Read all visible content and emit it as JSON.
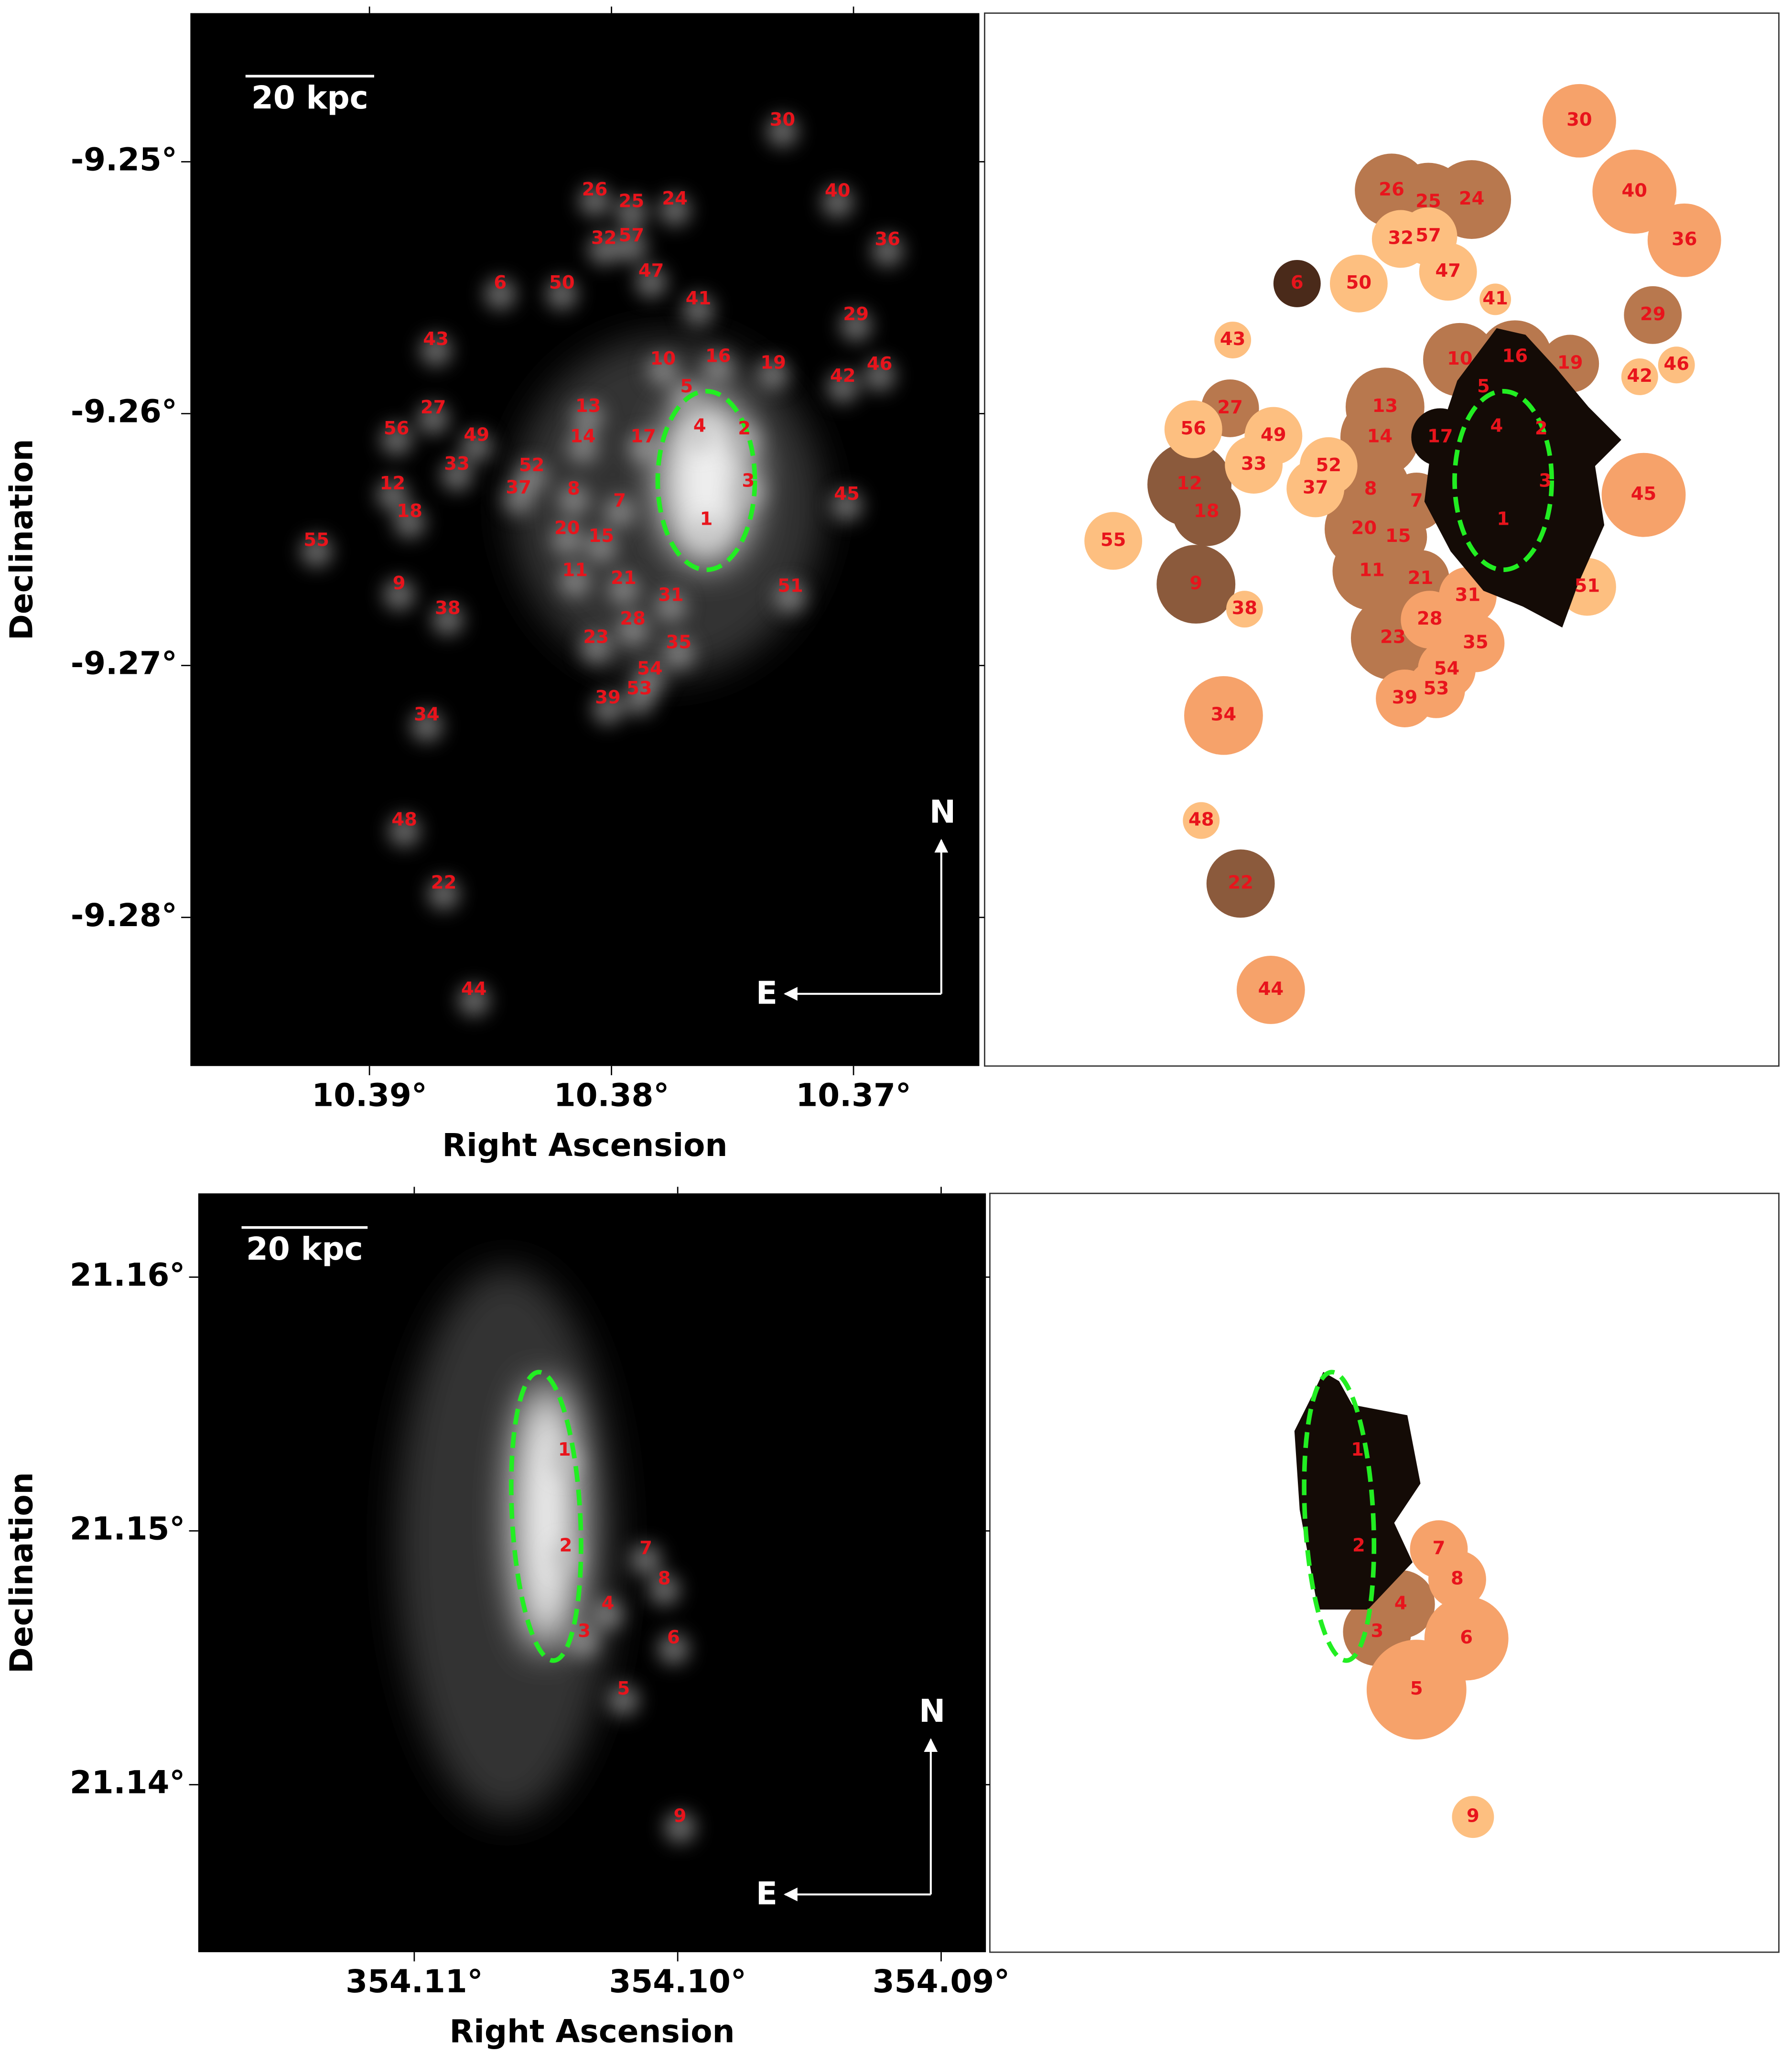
{
  "chart_data": [
    {
      "type": "image",
      "xlabel": "Right Ascension",
      "ylabel": "Declination",
      "xlim": [
        10.3974,
        10.3648
      ],
      "ylim": [
        -9.2859,
        -9.2441
      ],
      "xticks": [
        {
          "value": 10.39,
          "label": "10.39°"
        },
        {
          "value": 10.38,
          "label": "10.38°"
        },
        {
          "value": 10.37,
          "label": "10.37°"
        }
      ],
      "yticks": [
        {
          "value": -9.25,
          "label": "-9.25°"
        },
        {
          "value": -9.26,
          "label": "-9.26°"
        },
        {
          "value": -9.27,
          "label": "-9.27°"
        },
        {
          "value": -9.28,
          "label": "-9.28°"
        }
      ],
      "scale_bar": "20 kpc",
      "compass": [
        "N",
        "E"
      ],
      "regions": [
        "1",
        "2",
        "3",
        "4",
        "5",
        "6",
        "7",
        "8",
        "9",
        "10",
        "11",
        "12",
        "13",
        "14",
        "15",
        "16",
        "17",
        "18",
        "19",
        "20",
        "21",
        "22",
        "23",
        "24",
        "25",
        "26",
        "27",
        "28",
        "29",
        "30",
        "31",
        "32",
        "33",
        "34",
        "35",
        "36",
        "37",
        "38",
        "39",
        "40",
        "41",
        "42",
        "43",
        "44",
        "45",
        "46",
        "47",
        "48",
        "49",
        "50",
        "51",
        "52",
        "53",
        "54",
        "55",
        "56",
        "57"
      ]
    },
    {
      "type": "image",
      "xlabel": "Right Ascension",
      "ylabel": "Declination",
      "xlim": [
        354.1182,
        354.0883
      ],
      "ylim": [
        21.1334,
        21.1633
      ],
      "xticks": [
        {
          "value": 354.11,
          "label": "354.11°"
        },
        {
          "value": 354.1,
          "label": "354.10°"
        },
        {
          "value": 354.09,
          "label": "354.09°"
        }
      ],
      "yticks": [
        {
          "value": 21.16,
          "label": "21.16°"
        },
        {
          "value": 21.15,
          "label": "21.15°"
        },
        {
          "value": 21.14,
          "label": "21.14°"
        }
      ],
      "scale_bar": "20 kpc",
      "compass": [
        "N",
        "E"
      ],
      "regions": [
        "1",
        "2",
        "3",
        "4",
        "5",
        "6",
        "7",
        "8",
        "9"
      ]
    }
  ]
}
